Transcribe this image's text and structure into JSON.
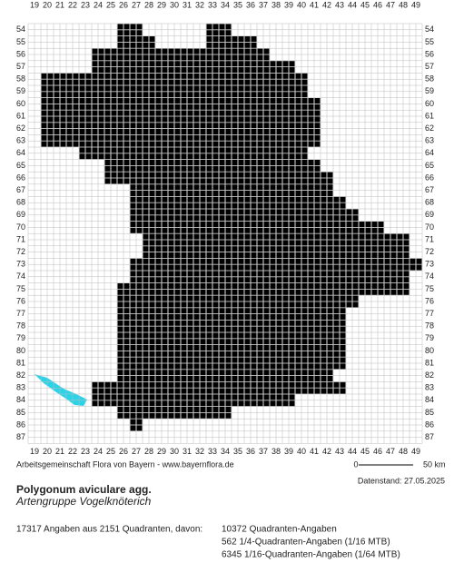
{
  "map": {
    "columns": [
      19,
      20,
      21,
      22,
      23,
      24,
      25,
      26,
      27,
      28,
      29,
      30,
      31,
      32,
      33,
      34,
      35,
      36,
      37,
      38,
      39,
      40,
      41,
      42,
      43,
      44,
      45,
      46,
      47,
      48,
      49
    ],
    "rows": [
      54,
      55,
      56,
      57,
      58,
      59,
      60,
      61,
      62,
      63,
      64,
      65,
      66,
      67,
      68,
      69,
      70,
      71,
      72,
      73,
      74,
      75,
      76,
      77,
      78,
      79,
      80,
      81,
      82,
      83,
      84,
      85,
      86,
      87
    ],
    "occupied": [
      {
        "row": 54,
        "from": 26,
        "to": 27
      },
      {
        "row": 54,
        "from": 33,
        "to": 34
      },
      {
        "row": 55,
        "from": 26,
        "to": 28
      },
      {
        "row": 55,
        "from": 33,
        "to": 36
      },
      {
        "row": 56,
        "from": 24,
        "to": 37
      },
      {
        "row": 57,
        "from": 24,
        "to": 39
      },
      {
        "row": 58,
        "from": 20,
        "to": 40
      },
      {
        "row": 59,
        "from": 20,
        "to": 40
      },
      {
        "row": 60,
        "from": 20,
        "to": 41
      },
      {
        "row": 61,
        "from": 20,
        "to": 41
      },
      {
        "row": 62,
        "from": 20,
        "to": 41
      },
      {
        "row": 63,
        "from": 20,
        "to": 41
      },
      {
        "row": 64,
        "from": 23,
        "to": 40
      },
      {
        "row": 65,
        "from": 25,
        "to": 41
      },
      {
        "row": 66,
        "from": 25,
        "to": 42
      },
      {
        "row": 67,
        "from": 27,
        "to": 42
      },
      {
        "row": 68,
        "from": 27,
        "to": 43
      },
      {
        "row": 69,
        "from": 27,
        "to": 44
      },
      {
        "row": 70,
        "from": 27,
        "to": 46
      },
      {
        "row": 71,
        "from": 28,
        "to": 48
      },
      {
        "row": 72,
        "from": 28,
        "to": 48
      },
      {
        "row": 73,
        "from": 27,
        "to": 49
      },
      {
        "row": 74,
        "from": 27,
        "to": 48
      },
      {
        "row": 75,
        "from": 26,
        "to": 48
      },
      {
        "row": 76,
        "from": 26,
        "to": 44
      },
      {
        "row": 77,
        "from": 26,
        "to": 43
      },
      {
        "row": 78,
        "from": 26,
        "to": 43
      },
      {
        "row": 79,
        "from": 26,
        "to": 43
      },
      {
        "row": 80,
        "from": 26,
        "to": 43
      },
      {
        "row": 81,
        "from": 26,
        "to": 43
      },
      {
        "row": 82,
        "from": 26,
        "to": 42
      },
      {
        "row": 83,
        "from": 24,
        "to": 43
      },
      {
        "row": 84,
        "from": 24,
        "to": 39
      },
      {
        "row": 85,
        "from": 26,
        "to": 34
      },
      {
        "row": 86,
        "from": 27,
        "to": 27
      }
    ]
  },
  "footer": {
    "source": "Arbeitsgemeinschaft Flora von Bayern - www.bayernflora.de",
    "scale_start": "0",
    "scale_end": "50 km",
    "date": "Datenstand: 27.05.2025",
    "title": "Polygonum aviculare agg.",
    "subtitle": "Artengruppe Vogelknöterich",
    "summary": "17317 Angaben aus 2151 Quadranten, davon:",
    "details": [
      "10372 Quadranten-Angaben",
      "562 1/4-Quadranten-Angaben (1/16 MTB)",
      "6345 1/16-Quadranten-Angaben (1/64 MTB)"
    ]
  }
}
